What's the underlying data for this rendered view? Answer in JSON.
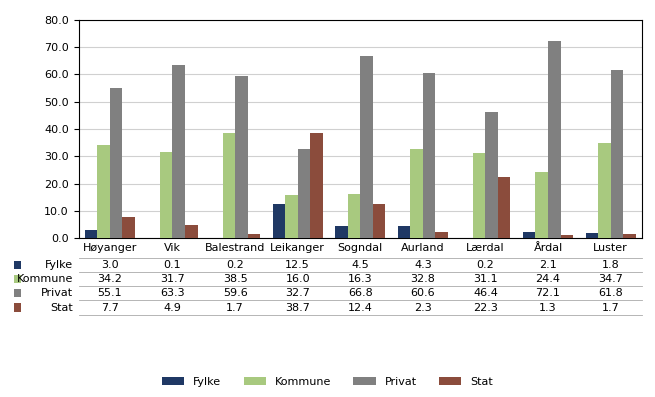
{
  "chart_data": {
    "type": "bar",
    "categories": [
      "Høyanger",
      "Vik",
      "Balestrand",
      "Leikanger",
      "Sogndal",
      "Aurland",
      "Lærdal",
      "Årdal",
      "Luster"
    ],
    "series": [
      {
        "name": "Fylke",
        "color": "#1f3864",
        "values": [
          3.0,
          0.1,
          0.2,
          12.5,
          4.5,
          4.3,
          0.2,
          2.1,
          1.8
        ],
        "value_labels": [
          "3.0",
          "0.1",
          "0.2",
          "12.5",
          "4.5",
          "4.3",
          "0.2",
          "2.1",
          "1.8"
        ]
      },
      {
        "name": "Kommune",
        "color": "#a8c97f",
        "values": [
          34.2,
          31.7,
          38.5,
          16.0,
          16.3,
          32.8,
          31.1,
          24.4,
          34.7
        ],
        "value_labels": [
          "34.2",
          "31.7",
          "38.5",
          "16.0",
          "16.3",
          "32.8",
          "31.1",
          "24.4",
          "34.7"
        ]
      },
      {
        "name": "Privat",
        "color": "#808080",
        "values": [
          55.1,
          63.3,
          59.6,
          32.7,
          66.8,
          60.6,
          46.4,
          72.1,
          61.8
        ],
        "value_labels": [
          "55.1",
          "63.3",
          "59.6",
          "32.7",
          "66.8",
          "60.6",
          "46.4",
          "72.1",
          "61.8"
        ]
      },
      {
        "name": "Stat",
        "color": "#8b4c3c",
        "values": [
          7.7,
          4.9,
          1.7,
          38.7,
          12.4,
          2.3,
          22.3,
          1.3,
          1.7
        ],
        "value_labels": [
          "7.7",
          "4.9",
          "1.7",
          "38.7",
          "12.4",
          "2.3",
          "22.3",
          "1.3",
          "1.7"
        ]
      }
    ],
    "ylim": [
      0,
      80
    ],
    "yticks": [
      {
        "value": 0,
        "label": "0.0"
      },
      {
        "value": 10,
        "label": "10.0"
      },
      {
        "value": 20,
        "label": "20.0"
      },
      {
        "value": 30,
        "label": "30.0"
      },
      {
        "value": 40,
        "label": "40.0"
      },
      {
        "value": 50,
        "label": "50.0"
      },
      {
        "value": 60,
        "label": "60.0"
      },
      {
        "value": 70,
        "label": "70.0"
      },
      {
        "value": 80,
        "label": "80.0"
      }
    ],
    "grid": true,
    "legend": "lower center"
  }
}
